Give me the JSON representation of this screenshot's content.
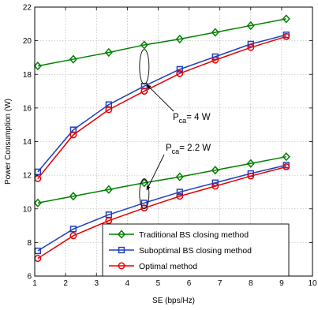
{
  "chart_data": {
    "type": "line",
    "xlabel": "SE (bps/Hz)",
    "ylabel": "Power Consumption (W)",
    "xlim": [
      1,
      10
    ],
    "ylim": [
      6,
      22
    ],
    "x_ticks": [
      "1",
      "2",
      "3",
      "4",
      "5",
      "6",
      "7",
      "8",
      "9",
      "10"
    ],
    "y_ticks": [
      "6",
      "8",
      "10",
      "12",
      "14",
      "16",
      "18",
      "20",
      "22"
    ],
    "grid": true,
    "legend_position": "bottom-right",
    "series": [
      {
        "name": "Traditional BS closing method",
        "color": "#008000",
        "marker": "diamond",
        "x": [
          1.1,
          2.25,
          3.4,
          4.55,
          5.7,
          6.85,
          8.0,
          9.15
        ],
        "y": [
          18.5,
          18.9,
          19.3,
          19.75,
          20.1,
          20.5,
          20.9,
          21.3
        ]
      },
      {
        "name": "Suboptimal BS closing method",
        "color": "#1f3fbf",
        "marker": "square",
        "x": [
          1.1,
          2.25,
          3.4,
          4.55,
          5.7,
          6.85,
          8.0,
          9.15
        ],
        "y": [
          12.2,
          14.7,
          16.2,
          17.3,
          18.3,
          19.05,
          19.8,
          20.35
        ]
      },
      {
        "name": "Optimal method",
        "color": "#e60000",
        "marker": "circle",
        "x": [
          1.1,
          2.25,
          3.4,
          4.55,
          5.7,
          6.85,
          8.0,
          9.15
        ],
        "y": [
          11.8,
          14.4,
          15.9,
          17.0,
          18.05,
          18.85,
          19.6,
          20.25
        ]
      },
      {
        "name": "Traditional BS closing method",
        "color": "#008000",
        "marker": "diamond",
        "x": [
          1.1,
          2.25,
          3.4,
          4.55,
          5.7,
          6.85,
          8.0,
          9.15
        ],
        "y": [
          10.35,
          10.75,
          11.15,
          11.55,
          11.9,
          12.3,
          12.7,
          13.1
        ]
      },
      {
        "name": "Suboptimal BS closing method",
        "color": "#1f3fbf",
        "marker": "square",
        "x": [
          1.1,
          2.25,
          3.4,
          4.55,
          5.7,
          6.85,
          8.0,
          9.15
        ],
        "y": [
          7.5,
          8.8,
          9.65,
          10.35,
          11.0,
          11.55,
          12.1,
          12.6
        ]
      },
      {
        "name": "Optimal method",
        "color": "#e60000",
        "marker": "circle",
        "x": [
          1.1,
          2.25,
          3.4,
          4.55,
          5.7,
          6.85,
          8.0,
          9.15
        ],
        "y": [
          7.05,
          8.4,
          9.3,
          10.05,
          10.75,
          11.35,
          11.95,
          12.5
        ]
      }
    ],
    "legend": [
      {
        "label": "Traditional BS closing method",
        "color": "#008000",
        "marker": "diamond"
      },
      {
        "label": "Suboptimal BS closing method",
        "color": "#1f3fbf",
        "marker": "square"
      },
      {
        "label": "Optimal method",
        "color": "#e60000",
        "marker": "circle"
      }
    ],
    "annotations": [
      {
        "prefix": "P",
        "sub": "ca",
        "suffix": "= 4 W",
        "target_x": 4.55,
        "target_y": 17.3
      },
      {
        "prefix": "P",
        "sub": "ca",
        "suffix": "= 2.2 W",
        "target_x": 4.55,
        "target_y": 11.2
      }
    ]
  }
}
